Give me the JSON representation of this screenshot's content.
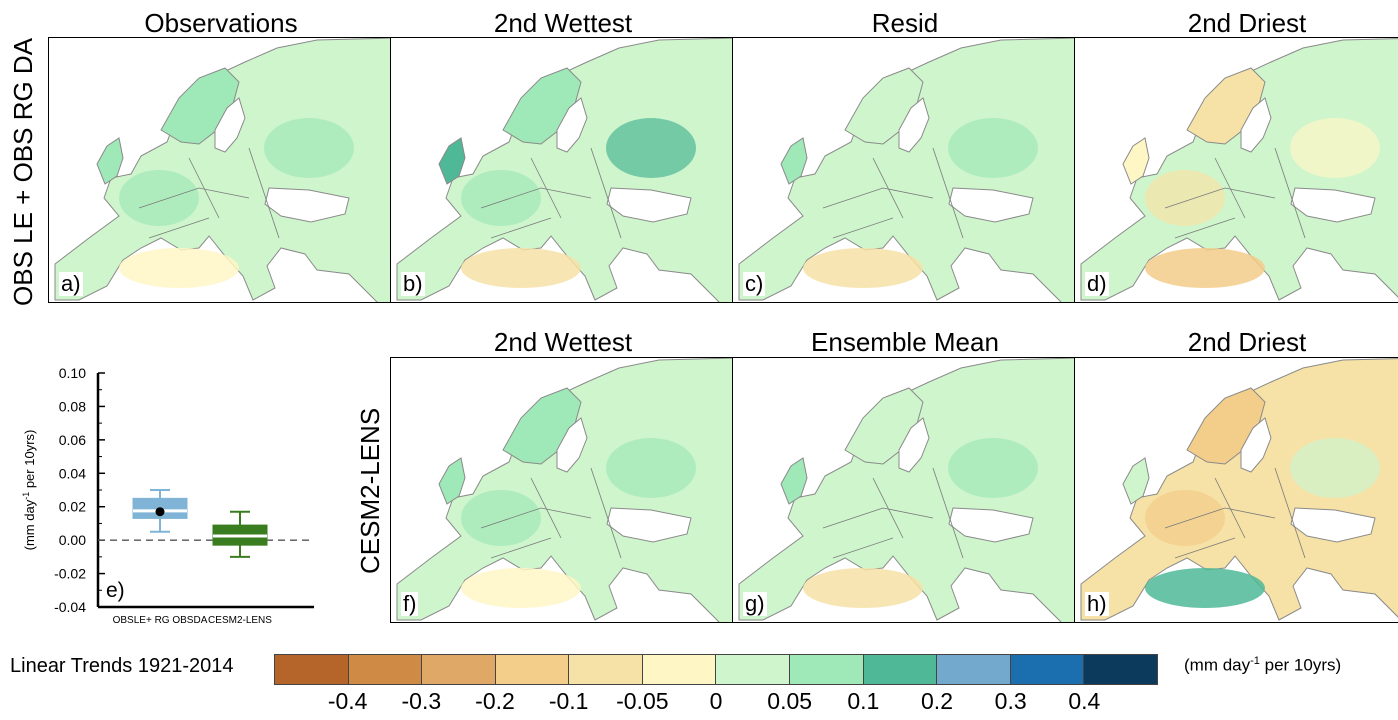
{
  "row_labels": {
    "top": "OBS LE + OBS RG DA",
    "bottom": "CESM2-LENS"
  },
  "panels": [
    {
      "id": "a",
      "title": "Observations",
      "label": "a)",
      "tone": "green-dominant"
    },
    {
      "id": "b",
      "title": "2nd Wettest",
      "label": "b)",
      "tone": "green-blocky"
    },
    {
      "id": "c",
      "title": "Resid",
      "label": "c)",
      "tone": "light-green"
    },
    {
      "id": "d",
      "title": "2nd Driest",
      "label": "d)",
      "tone": "yellow-mixed"
    },
    {
      "id": "f",
      "title": "2nd Wettest",
      "label": "f)",
      "tone": "green-dominant"
    },
    {
      "id": "g",
      "title": "Ensemble Mean",
      "label": "g)",
      "tone": "green-south-yellow"
    },
    {
      "id": "h",
      "title": "2nd Driest",
      "label": "h)",
      "tone": "yellow-dominant"
    }
  ],
  "chart_data": [
    {
      "type": "box",
      "label": "e)",
      "ylabel_parts": {
        "pre": "(mm day",
        "sup": "-1",
        "post": " per 10yrs)"
      },
      "ylim": [
        -0.04,
        0.1
      ],
      "yticks": [
        "-0.04",
        "-0.02",
        "0.00",
        "0.02",
        "0.04",
        "0.06",
        "0.08",
        "0.10"
      ],
      "ytick_values": [
        -0.04,
        -0.02,
        0.0,
        0.02,
        0.04,
        0.06,
        0.08,
        0.1
      ],
      "reference_line": 0.0,
      "categories": [
        "OBSLE+ RG OBSDA",
        "CESM2-LENS"
      ],
      "boxes": [
        {
          "name": "OBSLE+ RG OBSDA",
          "whisker_low": 0.005,
          "q1": 0.013,
          "median": 0.0175,
          "q3": 0.025,
          "whisker_high": 0.03,
          "observed": 0.017,
          "color": "#7fb4d6"
        },
        {
          "name": "CESM2-LENS",
          "whisker_low": -0.01,
          "q1": -0.003,
          "median": 0.0025,
          "q3": 0.009,
          "whisker_high": 0.017,
          "observed": null,
          "color": "#3a7d1e"
        }
      ]
    },
    {
      "type": "colorbar",
      "title": "Linear Trends 1921-2014",
      "unit_parts": {
        "pre": "(mm day",
        "sup": "-1",
        "post": " per 10yrs)"
      },
      "colors": [
        "#b5652a",
        "#cf8a45",
        "#e0a867",
        "#f3cd8a",
        "#f6e2a6",
        "#fff6c6",
        "#cff5cd",
        "#9fe8b8",
        "#4fb896",
        "#73a9cc",
        "#1c6fae",
        "#0c3a5c"
      ],
      "tick_labels": [
        "-0.4",
        "-0.3",
        "-0.2",
        "-0.1",
        "-0.05",
        "0",
        "0.05",
        "0.1",
        "0.2",
        "0.3",
        "0.4"
      ],
      "tick_values": [
        -0.4,
        -0.3,
        -0.2,
        -0.1,
        -0.05,
        0,
        0.05,
        0.1,
        0.2,
        0.3,
        0.4
      ]
    }
  ],
  "colors": {
    "land_outline": "#8a8a8a",
    "sea": "#ffffff",
    "border": "#7a7a7a"
  }
}
